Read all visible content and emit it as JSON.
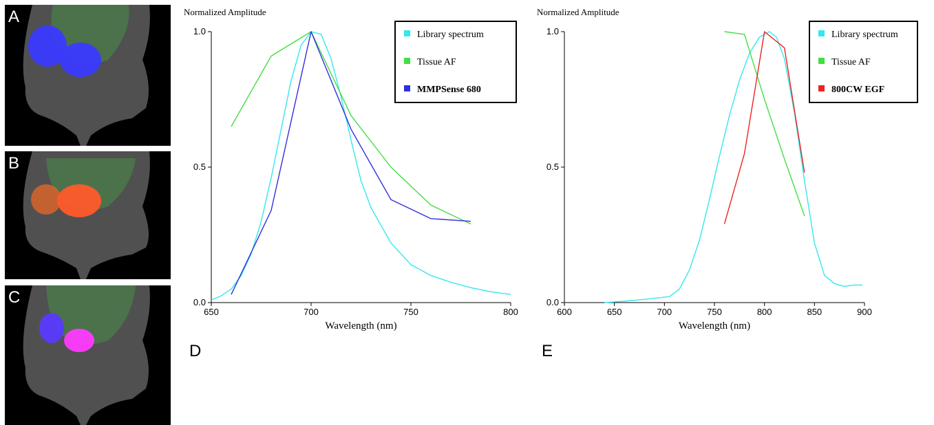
{
  "panels": [
    {
      "letter": "A",
      "spot_color": "#3a3aff",
      "blob_left": "#3a3aff",
      "blob_right": "#3a3aff"
    },
    {
      "letter": "B",
      "spot_color": "#ff5a2a",
      "blob_left": "#d8642a",
      "blob_right": "#ff5a2a"
    },
    {
      "letter": "C",
      "spot_color": "#ff3aff",
      "blob_left": "#5a3aff",
      "blob_right": "#ff3aff"
    }
  ],
  "plot_letters": {
    "d": "D",
    "e": "E"
  },
  "chart_data": [
    {
      "type": "line",
      "ylabel": "Normalized Amplitude",
      "xlabel": "Wavelength (nm)",
      "xlim": [
        650,
        800
      ],
      "ylim": [
        0,
        1
      ],
      "xticks": [
        "650",
        "700",
        "750",
        "800"
      ],
      "yticks": [
        "0.0",
        "0.5",
        "1.0"
      ],
      "legend": {
        "position": "top-right"
      },
      "series": [
        {
          "name": "Library spectrum",
          "color": "#33e8ee",
          "bold": false,
          "x": [
            650,
            655,
            660,
            665,
            670,
            675,
            680,
            685,
            690,
            695,
            700,
            705,
            710,
            715,
            720,
            725,
            730,
            740,
            750,
            760,
            770,
            780,
            790,
            800
          ],
          "y": [
            0.01,
            0.025,
            0.05,
            0.1,
            0.18,
            0.3,
            0.46,
            0.64,
            0.82,
            0.95,
            1.0,
            0.99,
            0.9,
            0.76,
            0.6,
            0.45,
            0.35,
            0.22,
            0.14,
            0.1,
            0.075,
            0.055,
            0.04,
            0.03
          ]
        },
        {
          "name": "Tissue AF",
          "color": "#44dd44",
          "bold": false,
          "x": [
            660,
            680,
            700,
            720,
            740,
            760,
            780
          ],
          "y": [
            0.65,
            0.91,
            1.0,
            0.69,
            0.5,
            0.36,
            0.29
          ]
        },
        {
          "name": "MMPSense 680",
          "color": "#2f2fdd",
          "bold": true,
          "x": [
            660,
            680,
            700,
            720,
            740,
            760,
            780
          ],
          "y": [
            0.03,
            0.34,
            1.0,
            0.64,
            0.38,
            0.31,
            0.3
          ]
        }
      ]
    },
    {
      "type": "line",
      "ylabel": "Normalized Amplitude",
      "xlabel": "Wavelength (nm)",
      "xlim": [
        600,
        900
      ],
      "ylim": [
        0,
        1
      ],
      "xticks": [
        "600",
        "650",
        "700",
        "750",
        "800",
        "850",
        "900"
      ],
      "yticks": [
        "0.0",
        "0.5",
        "1.0"
      ],
      "legend": {
        "position": "top-right"
      },
      "series": [
        {
          "name": "Library spectrum",
          "color": "#33e8ee",
          "bold": false,
          "x": [
            640,
            660,
            680,
            700,
            705,
            715,
            725,
            735,
            745,
            755,
            765,
            775,
            785,
            795,
            805,
            812,
            820,
            830,
            840,
            850,
            860,
            870,
            880,
            890,
            898
          ],
          "y": [
            0.0,
            0.005,
            0.012,
            0.02,
            0.022,
            0.05,
            0.12,
            0.23,
            0.38,
            0.54,
            0.69,
            0.82,
            0.92,
            0.98,
            1.0,
            0.98,
            0.9,
            0.7,
            0.45,
            0.22,
            0.1,
            0.07,
            0.06,
            0.065,
            0.065
          ]
        },
        {
          "name": "Tissue AF",
          "color": "#44dd44",
          "bold": false,
          "x": [
            760,
            780,
            800,
            820,
            840
          ],
          "y": [
            1.0,
            0.99,
            0.75,
            0.53,
            0.32
          ]
        },
        {
          "name": "800CW EGF",
          "color": "#ee2222",
          "bold": true,
          "x": [
            760,
            780,
            800,
            820,
            840
          ],
          "y": [
            0.29,
            0.55,
            1.0,
            0.94,
            0.48
          ]
        }
      ]
    }
  ]
}
